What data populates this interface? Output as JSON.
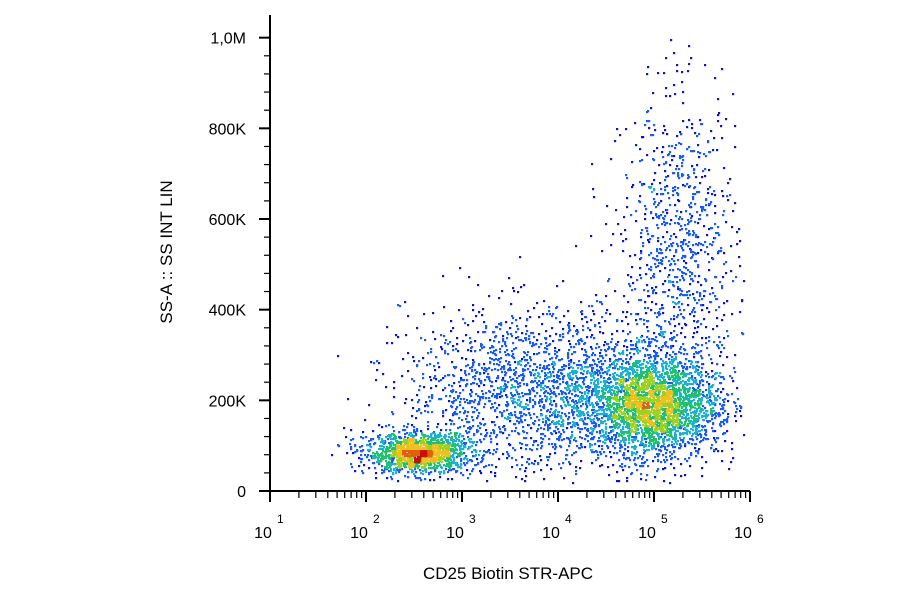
{
  "chart_data": {
    "type": "scatter",
    "xlabel": "CD25 Biotin STR-APC",
    "ylabel": "SS-A :: SS INT LIN",
    "x_scale": "log",
    "xlim": [
      10,
      1000000
    ],
    "ylim": [
      0,
      1050000
    ],
    "x_ticks": [
      {
        "value": 10,
        "base": "10",
        "exp": "1"
      },
      {
        "value": 100,
        "base": "10",
        "exp": "2"
      },
      {
        "value": 1000,
        "base": "10",
        "exp": "3"
      },
      {
        "value": 10000,
        "base": "10",
        "exp": "4"
      },
      {
        "value": 100000,
        "base": "10",
        "exp": "5"
      },
      {
        "value": 1000000,
        "base": "10",
        "exp": "6"
      }
    ],
    "y_ticks": [
      {
        "value": 0,
        "label": "0"
      },
      {
        "value": 200000,
        "label": "200K"
      },
      {
        "value": 400000,
        "label": "400K"
      },
      {
        "value": 600000,
        "label": "600K"
      },
      {
        "value": 800000,
        "label": "800K"
      },
      {
        "value": 1000000,
        "label": "1,0M"
      }
    ],
    "density_colors": [
      "#0a14c8",
      "#1a5cf0",
      "#1fb0d0",
      "#20c070",
      "#a0d020",
      "#f0c020",
      "#e06010",
      "#c81010"
    ],
    "populations": [
      {
        "name": "",
        "center_x": 350,
        "center_y": 85000,
        "sd_log_x": 0.28,
        "sd_y": 22000,
        "count": 1400
      },
      {
        "name": "",
        "center_x": 95000,
        "center_y": 190000,
        "sd_log_x": 0.35,
        "sd_y": 55000,
        "count": 2600
      },
      {
        "name": "",
        "center_x": 8000,
        "center_y": 220000,
        "sd_log_x": 0.75,
        "sd_y": 90000,
        "count": 2200
      },
      {
        "name": "",
        "center_x": 180000,
        "center_y": 520000,
        "sd_log_x": 0.3,
        "sd_y": 170000,
        "count": 900
      }
    ],
    "grid": false,
    "legend": "none"
  }
}
